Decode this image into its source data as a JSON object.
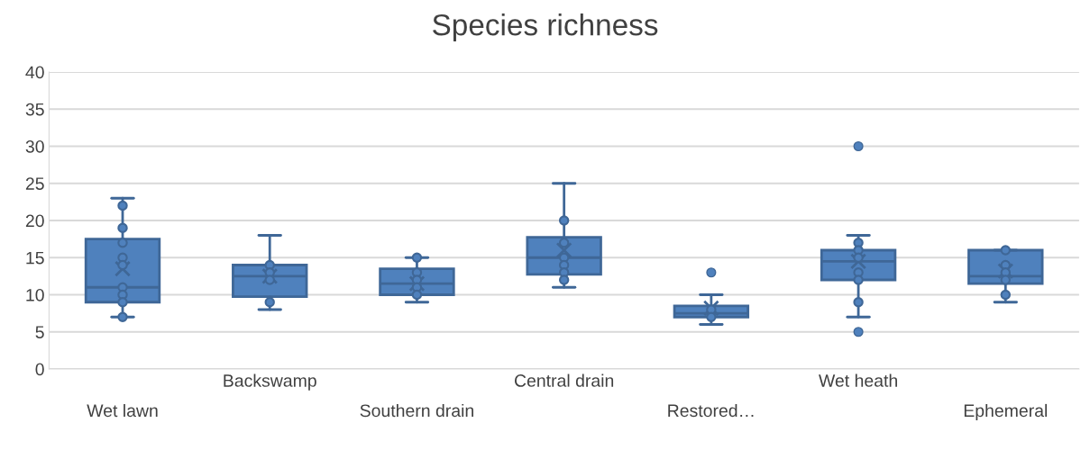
{
  "chart_data": {
    "type": "box",
    "title": "Species richness",
    "categories": [
      "Wet lawn",
      "Backswamp",
      "Southern drain",
      "Central drain",
      "Restored…",
      "Wet heath",
      "Ephemeral"
    ],
    "ylim": [
      0,
      40
    ],
    "yticks": [
      0,
      5,
      10,
      15,
      20,
      25,
      30,
      35,
      40
    ],
    "grid": "y",
    "legend": false,
    "series": [
      {
        "color": "#4f81bd",
        "boxes": [
          {
            "low": 7,
            "q1": 9,
            "median": 11,
            "q3": 17.5,
            "high": 23,
            "mean": 13.5
          },
          {
            "low": 8,
            "q1": 9.75,
            "median": 12.5,
            "q3": 14,
            "high": 18,
            "mean": 12.5
          },
          {
            "low": 9,
            "q1": 10,
            "median": 11.5,
            "q3": 13.5,
            "high": 15,
            "mean": 11.5
          },
          {
            "low": 11,
            "q1": 12.75,
            "median": 15,
            "q3": 17.75,
            "high": 25,
            "mean": 16
          },
          {
            "low": 6,
            "q1": 7,
            "median": 7.5,
            "q3": 8.5,
            "high": 10,
            "mean": 8.2,
            "outliers": [
              13
            ]
          },
          {
            "low": 7,
            "q1": 12,
            "median": 14.5,
            "q3": 16,
            "high": 18,
            "mean": 14.5,
            "outliers": [
              30,
              5
            ]
          },
          {
            "low": 9,
            "q1": 11.5,
            "median": 12.5,
            "q3": 16,
            "high": 16,
            "mean": 13.2
          }
        ]
      },
      {
        "type": "scatter",
        "color": "#4f81bd",
        "marker": "circle",
        "x": [
          "Wet lawn",
          "Wet lawn",
          "Wet lawn",
          "Wet lawn",
          "Wet lawn",
          "Wet lawn",
          "Wet lawn",
          "Wet lawn",
          "Wet lawn",
          "Backswamp",
          "Backswamp",
          "Backswamp",
          "Backswamp",
          "Southern drain",
          "Southern drain",
          "Southern drain",
          "Southern drain",
          "Southern drain",
          "Central drain",
          "Central drain",
          "Central drain",
          "Central drain",
          "Central drain",
          "Central drain",
          "Restored…",
          "Restored…",
          "Wet heath",
          "Wet heath",
          "Wet heath",
          "Wet heath",
          "Wet heath",
          "Wet heath",
          "Ephemeral",
          "Ephemeral",
          "Ephemeral",
          "Ephemeral",
          "Ephemeral"
        ],
        "values": [
          22,
          19,
          17,
          15,
          14,
          11,
          10,
          9,
          7,
          14,
          13,
          12,
          9,
          15,
          13,
          12,
          11,
          10,
          20,
          17,
          15,
          14,
          13,
          12,
          8,
          7,
          17,
          16,
          15,
          13,
          12,
          9,
          16,
          14,
          13,
          12,
          10
        ]
      }
    ]
  }
}
